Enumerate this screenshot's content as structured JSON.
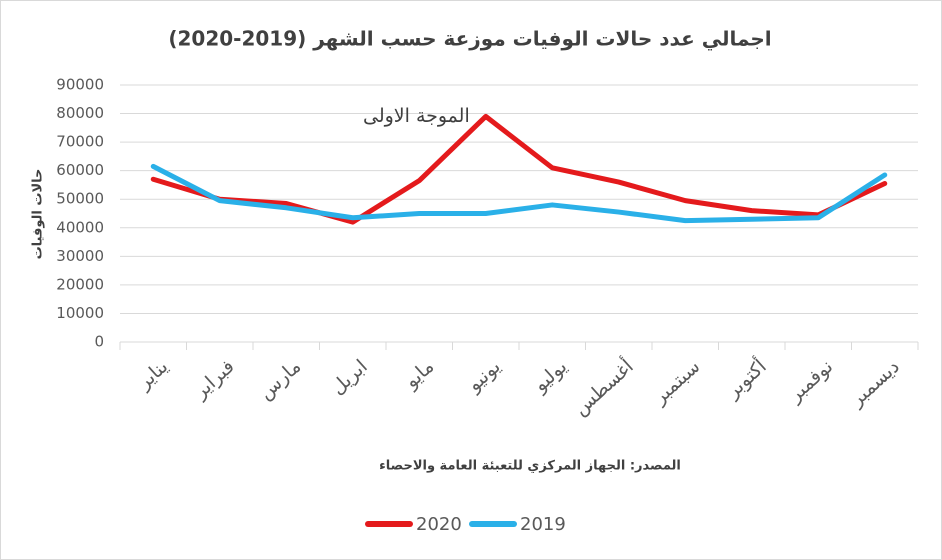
{
  "chart_data": {
    "type": "line",
    "title": "اجمالي عدد حالات الوفيات موزعة حسب الشهر (2019-2020)",
    "y_label": "حالات الوفيات",
    "source": "المصدر: الجهاز المركزي للتعبئة العامة والاحصاء",
    "annotation": "الموجة الاولى",
    "categories": [
      "يناير",
      "فبراير",
      "مارس",
      "ابريل",
      "مايو",
      "يونيو",
      "يوليو",
      "أغسطس",
      "سبتمبر",
      "أكتوبر",
      "نوفمبر",
      "ديسمبر"
    ],
    "series": [
      {
        "name": "2020",
        "color": "#e41a1c",
        "values": [
          57000,
          50000,
          48500,
          42000,
          56500,
          79000,
          61000,
          56000,
          49500,
          46000,
          44500,
          55500
        ]
      },
      {
        "name": "2019",
        "color": "#2ab0e8",
        "values": [
          61500,
          49500,
          47000,
          43500,
          45000,
          45000,
          48000,
          45500,
          42500,
          43000,
          43500,
          58500
        ]
      }
    ],
    "ylim": [
      0,
      90000
    ],
    "yticks": [
      0,
      10000,
      20000,
      30000,
      40000,
      50000,
      60000,
      70000,
      80000,
      90000
    ],
    "grid": true
  }
}
